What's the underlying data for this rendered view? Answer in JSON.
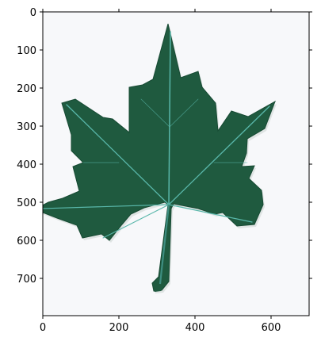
{
  "image": {
    "subject": "leaf-photo",
    "colors": {
      "leaf": "#1f5a3f",
      "leaf_dark": "#174a33",
      "vein": "#59b7aa",
      "background": "#f7f8fa",
      "axes": "#000000"
    }
  },
  "axes": {
    "x_ticks": [
      {
        "value": 0,
        "label": "0"
      },
      {
        "value": 200,
        "label": "200"
      },
      {
        "value": 400,
        "label": "400"
      },
      {
        "value": 600,
        "label": "600"
      }
    ],
    "y_ticks": [
      {
        "value": 0,
        "label": "0"
      },
      {
        "value": 100,
        "label": "100"
      },
      {
        "value": 200,
        "label": "200"
      },
      {
        "value": 300,
        "label": "300"
      },
      {
        "value": 400,
        "label": "400"
      },
      {
        "value": 500,
        "label": "500"
      },
      {
        "value": 600,
        "label": "600"
      },
      {
        "value": 700,
        "label": "700"
      }
    ]
  }
}
